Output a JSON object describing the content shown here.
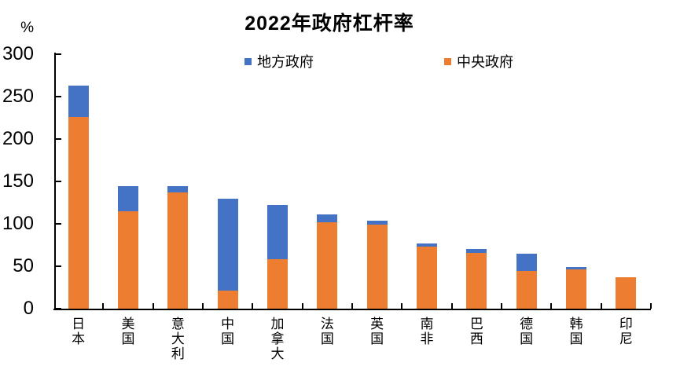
{
  "title": "2022年政府杠杆率",
  "y_axis_unit": "%",
  "legend": [
    {
      "label": "地方政府",
      "color": "#4472C4"
    },
    {
      "label": "中央政府",
      "color": "#ED7D31"
    }
  ],
  "chart_data": {
    "type": "bar",
    "stacked": true,
    "title": "2022年政府杠杆率",
    "categories": [
      "日本",
      "美国",
      "意大利",
      "中国",
      "加拿大",
      "法国",
      "英国",
      "南非",
      "巴西",
      "德国",
      "韩国",
      "印尼"
    ],
    "series": [
      {
        "name": "中央政府",
        "color": "#ED7D31",
        "values": [
          226,
          115,
          137,
          21,
          58,
          102,
          99,
          73,
          66,
          44,
          46,
          37
        ]
      },
      {
        "name": "地方政府",
        "color": "#4472C4",
        "values": [
          37,
          29,
          7,
          109,
          64,
          9,
          5,
          4,
          4,
          21,
          3,
          0
        ]
      }
    ],
    "totals": [
      263,
      144,
      144,
      130,
      122,
      111,
      104,
      77,
      70,
      65,
      49,
      37
    ],
    "xlabel": "",
    "ylabel": "%",
    "ylim": [
      0,
      300
    ],
    "yticks": [
      0,
      50,
      100,
      150,
      200,
      250,
      300
    ],
    "grid": false,
    "legend_position": "top"
  }
}
